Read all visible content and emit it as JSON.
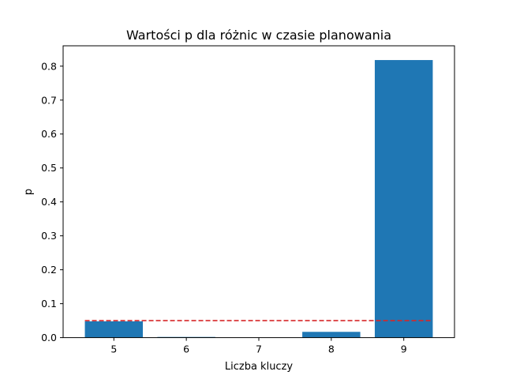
{
  "chart_data": {
    "type": "bar",
    "title": "Wartości p dla różnic w czasie planowania",
    "xlabel": "Liczba kluczy",
    "ylabel": "p",
    "categories": [
      "5",
      "6",
      "7",
      "8",
      "9"
    ],
    "values": [
      0.048,
      0.002,
      0.0,
      0.017,
      0.818
    ],
    "ylim": [
      0.0,
      0.86
    ],
    "yticks": [
      "0.0",
      "0.1",
      "0.2",
      "0.3",
      "0.4",
      "0.5",
      "0.6",
      "0.7",
      "0.8"
    ],
    "reference_line": {
      "value": 0.05,
      "style": "dashed",
      "color": "#d62728"
    },
    "bar_color": "#1f77b4",
    "grid": false,
    "legend": "none"
  }
}
